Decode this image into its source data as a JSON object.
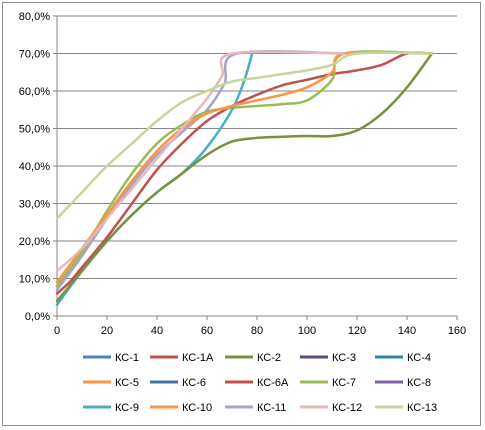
{
  "chart_data": {
    "type": "line",
    "title": "",
    "xlabel": "",
    "ylabel": "",
    "xlim": [
      0,
      160
    ],
    "ylim": [
      0,
      80
    ],
    "x_ticks": [
      "0",
      "20",
      "40",
      "60",
      "80",
      "100",
      "120",
      "140",
      "160"
    ],
    "y_ticks": [
      "0,0%",
      "10,0%",
      "20,0%",
      "30,0%",
      "40,0%",
      "50,0%",
      "60,0%",
      "70,0%",
      "80,0%"
    ],
    "grid": "horizontal",
    "legend_position": "bottom",
    "series": [
      {
        "name": "КС-1",
        "color": "#4f81bd",
        "points": []
      },
      {
        "name": "КС-1А",
        "color": "#c0504d",
        "points": [
          [
            0,
            6
          ],
          [
            5,
            9
          ],
          [
            10,
            13
          ],
          [
            20,
            21
          ],
          [
            30,
            30
          ],
          [
            40,
            39
          ],
          [
            50,
            46
          ],
          [
            60,
            52
          ],
          [
            70,
            56
          ],
          [
            80,
            59
          ],
          [
            90,
            61.5
          ],
          [
            100,
            63
          ],
          [
            110,
            64.5
          ],
          [
            120,
            65.5
          ],
          [
            130,
            67
          ],
          [
            140,
            70
          ],
          [
            150,
            70
          ]
        ]
      },
      {
        "name": "КС-2",
        "color": "#77933c",
        "points": [
          [
            0,
            4
          ],
          [
            10,
            12
          ],
          [
            20,
            20
          ],
          [
            30,
            27
          ],
          [
            40,
            33
          ],
          [
            50,
            38
          ],
          [
            60,
            43
          ],
          [
            70,
            46.5
          ],
          [
            80,
            47.5
          ],
          [
            90,
            47.8
          ],
          [
            100,
            48
          ],
          [
            110,
            48
          ],
          [
            120,
            49.5
          ],
          [
            130,
            54
          ],
          [
            140,
            61
          ],
          [
            150,
            70
          ]
        ]
      },
      {
        "name": "КС-3",
        "color": "#604a7b",
        "points": []
      },
      {
        "name": "КС-4",
        "color": "#31859c",
        "points": []
      },
      {
        "name": "КС-5",
        "color": "#f79646",
        "points": [
          [
            0,
            9
          ],
          [
            10,
            18
          ],
          [
            20,
            27
          ],
          [
            30,
            36
          ],
          [
            40,
            44
          ],
          [
            50,
            50
          ],
          [
            60,
            54
          ],
          [
            70,
            56
          ],
          [
            80,
            57.5
          ],
          [
            90,
            59
          ],
          [
            100,
            61
          ],
          [
            110,
            65
          ],
          [
            115,
            70
          ],
          [
            150,
            70
          ]
        ]
      },
      {
        "name": "КС-6",
        "color": "#4572a7",
        "points": []
      },
      {
        "name": "КС-6А",
        "color": "#c0504d",
        "points": []
      },
      {
        "name": "КС-7",
        "color": "#9bbb59",
        "points": [
          [
            0,
            8
          ],
          [
            10,
            17
          ],
          [
            20,
            28
          ],
          [
            30,
            38
          ],
          [
            40,
            46
          ],
          [
            50,
            51
          ],
          [
            60,
            54.5
          ],
          [
            70,
            55.5
          ],
          [
            80,
            56
          ],
          [
            90,
            56.5
          ],
          [
            100,
            57.5
          ],
          [
            110,
            63
          ],
          [
            115,
            70
          ],
          [
            150,
            70
          ]
        ]
      },
      {
        "name": "КС-8",
        "color": "#8064a2",
        "points": []
      },
      {
        "name": "КС-9",
        "color": "#4bacc6",
        "points": [
          [
            0,
            3
          ],
          [
            10,
            12
          ],
          [
            20,
            20
          ],
          [
            30,
            27
          ],
          [
            40,
            33
          ],
          [
            50,
            38
          ],
          [
            60,
            45
          ],
          [
            70,
            55
          ],
          [
            75,
            63
          ],
          [
            78,
            70
          ]
        ]
      },
      {
        "name": "КС-10",
        "color": "#f79646",
        "points": []
      },
      {
        "name": "КС-11",
        "color": "#a5a5c8",
        "points": [
          [
            0,
            7
          ],
          [
            10,
            16
          ],
          [
            20,
            26
          ],
          [
            30,
            35
          ],
          [
            40,
            43
          ],
          [
            50,
            49
          ],
          [
            60,
            55
          ],
          [
            67,
            62
          ],
          [
            72,
            70
          ],
          [
            115,
            70
          ]
        ]
      },
      {
        "name": "КС-12",
        "color": "#e6b9b8",
        "points": [
          [
            0,
            12
          ],
          [
            10,
            18
          ],
          [
            20,
            26
          ],
          [
            30,
            34
          ],
          [
            40,
            42
          ],
          [
            50,
            50
          ],
          [
            60,
            58
          ],
          [
            66,
            64
          ],
          [
            70,
            70
          ],
          [
            115,
            70
          ]
        ]
      },
      {
        "name": "КС-13",
        "color": "#c3d69b",
        "points": [
          [
            0,
            26
          ],
          [
            10,
            33
          ],
          [
            20,
            40
          ],
          [
            30,
            46
          ],
          [
            40,
            52
          ],
          [
            50,
            57
          ],
          [
            60,
            60
          ],
          [
            70,
            62.5
          ],
          [
            80,
            63.5
          ],
          [
            90,
            64.5
          ],
          [
            100,
            65.5
          ],
          [
            110,
            67
          ],
          [
            120,
            70
          ],
          [
            150,
            70
          ]
        ]
      }
    ]
  }
}
